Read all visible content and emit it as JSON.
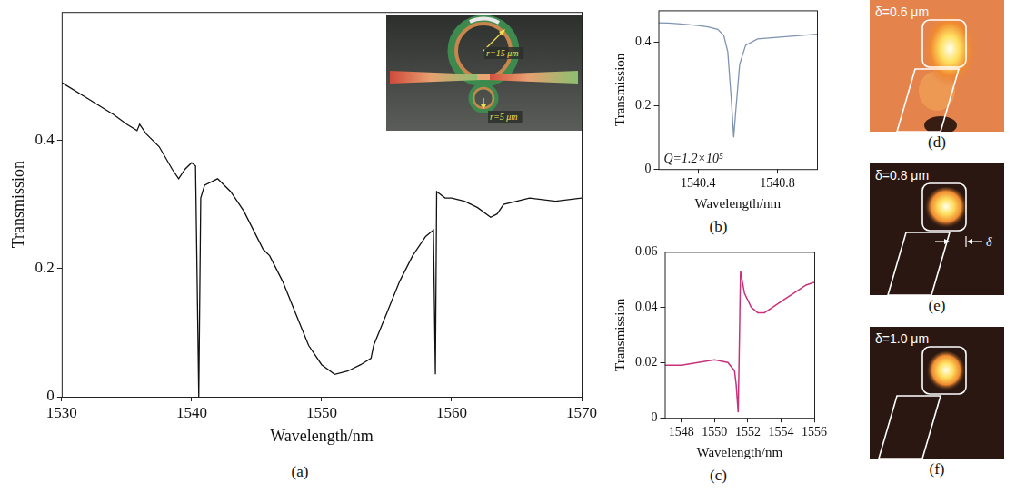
{
  "chart_data": [
    {
      "panel": "(a)",
      "type": "line",
      "x_label": "Wavelength/nm",
      "y_label": "Transmission",
      "color": "#111111",
      "x": [
        1530,
        1532,
        1534,
        1535,
        1535.8,
        1536,
        1536.5,
        1537.5,
        1538.5,
        1539,
        1539.5,
        1540,
        1540.3,
        1540.55,
        1540.7,
        1541,
        1542,
        1543,
        1544,
        1545,
        1545.5,
        1546,
        1547,
        1548,
        1549,
        1550,
        1551,
        1552,
        1553,
        1553.8,
        1554,
        1555,
        1556,
        1557,
        1558,
        1558.6,
        1558.75,
        1558.85,
        1559.5,
        1560,
        1561,
        1562,
        1563,
        1563.5,
        1564,
        1566,
        1568,
        1570
      ],
      "values": [
        0.49,
        0.465,
        0.44,
        0.425,
        0.415,
        0.425,
        0.41,
        0.39,
        0.355,
        0.34,
        0.355,
        0.365,
        0.36,
        0.0,
        0.31,
        0.33,
        0.34,
        0.32,
        0.29,
        0.25,
        0.23,
        0.22,
        0.18,
        0.13,
        0.08,
        0.05,
        0.035,
        0.04,
        0.05,
        0.06,
        0.08,
        0.13,
        0.18,
        0.22,
        0.25,
        0.26,
        0.035,
        0.32,
        0.31,
        0.31,
        0.305,
        0.295,
        0.28,
        0.285,
        0.3,
        0.31,
        0.305,
        0.31
      ],
      "xlim": [
        1530,
        1570
      ],
      "xticks": [
        1530,
        1540,
        1550,
        1560,
        1570
      ],
      "ylim": [
        0,
        0.6
      ],
      "yticks": [
        0,
        0.2,
        0.4
      ],
      "grid": false,
      "annotations": [
        "r=15 μm",
        "r=5 μm"
      ]
    },
    {
      "panel": "(b)",
      "type": "line",
      "x_label": "Wavelength/nm",
      "y_label": "Transmission",
      "color": "#7f93b0",
      "x": [
        1540.2,
        1540.25,
        1540.3,
        1540.35,
        1540.4,
        1540.45,
        1540.5,
        1540.53,
        1540.55,
        1540.57,
        1540.58,
        1540.59,
        1540.61,
        1540.64,
        1540.7,
        1540.8,
        1540.9,
        1541.0
      ],
      "values": [
        0.461,
        0.46,
        0.458,
        0.455,
        0.452,
        0.448,
        0.44,
        0.42,
        0.37,
        0.2,
        0.1,
        0.18,
        0.33,
        0.39,
        0.41,
        0.415,
        0.42,
        0.425
      ],
      "xlim": [
        1540.2,
        1541.0
      ],
      "xticks": [
        1540.4,
        1540.8
      ],
      "ylim": [
        0,
        0.5
      ],
      "yticks": [
        0,
        0.2,
        0.4
      ],
      "grid": false,
      "annotations": [
        "Q=1.2×10⁵"
      ]
    },
    {
      "panel": "(c)",
      "type": "line",
      "x_label": "Wavelength/nm",
      "y_label": "Transmission",
      "color": "#c8327a",
      "x": [
        1547,
        1548,
        1549,
        1550,
        1550.8,
        1551.2,
        1551.3,
        1551.42,
        1551.5,
        1551.56,
        1551.65,
        1551.8,
        1552.2,
        1552.6,
        1553,
        1553.5,
        1554,
        1554.5,
        1555,
        1555.5,
        1556
      ],
      "values": [
        0.019,
        0.019,
        0.02,
        0.021,
        0.02,
        0.017,
        0.012,
        0.002,
        0.03,
        0.053,
        0.05,
        0.045,
        0.04,
        0.038,
        0.038,
        0.04,
        0.042,
        0.044,
        0.046,
        0.048,
        0.049
      ],
      "xlim": [
        1547,
        1556
      ],
      "xticks": [
        1548,
        1550,
        1552,
        1554,
        1556
      ],
      "ylim": [
        0,
        0.06
      ],
      "yticks": [
        0,
        0.02,
        0.04,
        0.06
      ],
      "grid": false
    }
  ],
  "mode_profiles": [
    {
      "panel": "(d)",
      "label": "δ=0.6 μm"
    },
    {
      "panel": "(e)",
      "label": "δ=0.8 μm",
      "annotation": "δ"
    },
    {
      "panel": "(f)",
      "label": "δ=1.0 μm"
    }
  ]
}
